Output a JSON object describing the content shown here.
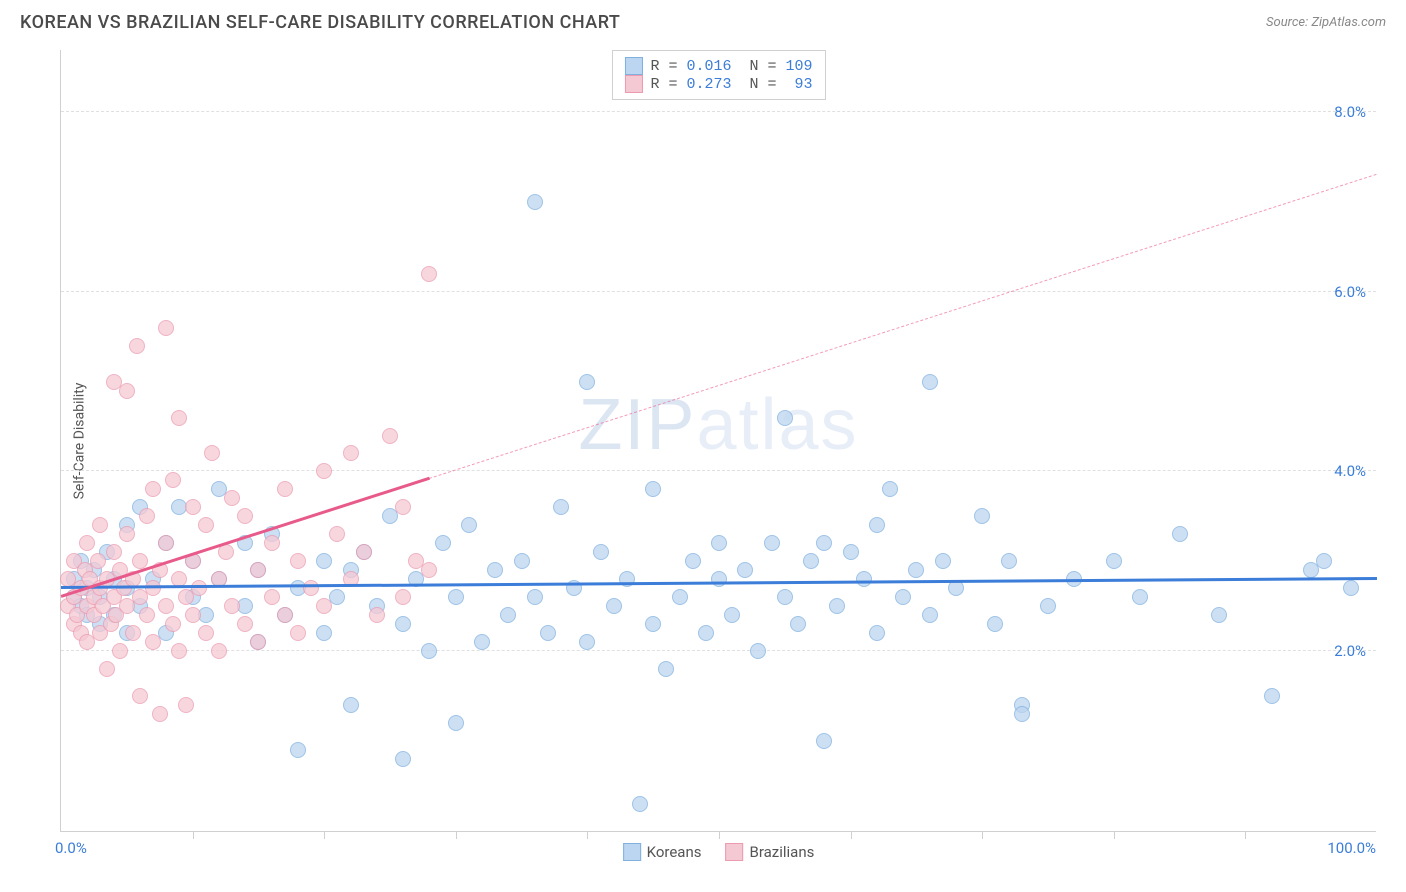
{
  "title": "KOREAN VS BRAZILIAN SELF-CARE DISABILITY CORRELATION CHART",
  "source_label": "Source: ",
  "source_name": "ZipAtlas.com",
  "watermark": "ZIPatlas",
  "y_axis_label": "Self-Care Disability",
  "chart": {
    "type": "scatter",
    "xlim": [
      0,
      100
    ],
    "ylim": [
      0,
      8.7
    ],
    "x_ticks_pct": [
      10,
      20,
      30,
      40,
      50,
      60,
      70,
      80,
      90
    ],
    "x_tick_labels": [
      {
        "pos": 0,
        "label": "0.0%"
      },
      {
        "pos": 100,
        "label": "100.0%"
      }
    ],
    "y_gridlines": [
      2,
      4,
      6,
      8
    ],
    "y_tick_labels": [
      {
        "pos": 2,
        "label": "2.0%"
      },
      {
        "pos": 4,
        "label": "4.0%"
      },
      {
        "pos": 6,
        "label": "6.0%"
      },
      {
        "pos": 8,
        "label": "8.0%"
      }
    ],
    "background_color": "#ffffff",
    "grid_color": "#e0e0e0",
    "marker_radius": 8,
    "series": [
      {
        "name": "Koreans",
        "color_fill": "#bcd5f0",
        "color_stroke": "#7fb0e0",
        "R": "0.016",
        "N": "109",
        "trend": {
          "y_intercept": 2.7,
          "y_at_100": 2.8,
          "solid_until_x": 100,
          "color": "#3b7dd8"
        },
        "points": [
          [
            1,
            2.6
          ],
          [
            1,
            2.8
          ],
          [
            1.5,
            2.5
          ],
          [
            1.5,
            3.0
          ],
          [
            2,
            2.4
          ],
          [
            2,
            2.7
          ],
          [
            2.5,
            2.9
          ],
          [
            3,
            2.3
          ],
          [
            3,
            2.6
          ],
          [
            3.5,
            3.1
          ],
          [
            4,
            2.8
          ],
          [
            4,
            2.4
          ],
          [
            5,
            3.4
          ],
          [
            5,
            2.2
          ],
          [
            5,
            2.7
          ],
          [
            6,
            3.6
          ],
          [
            6,
            2.5
          ],
          [
            7,
            2.8
          ],
          [
            8,
            2.2
          ],
          [
            8,
            3.2
          ],
          [
            9,
            3.6
          ],
          [
            10,
            2.6
          ],
          [
            10,
            3.0
          ],
          [
            11,
            2.4
          ],
          [
            12,
            3.8
          ],
          [
            12,
            2.8
          ],
          [
            14,
            3.2
          ],
          [
            14,
            2.5
          ],
          [
            15,
            2.9
          ],
          [
            15,
            2.1
          ],
          [
            16,
            3.3
          ],
          [
            17,
            2.4
          ],
          [
            18,
            2.7
          ],
          [
            18,
            0.9
          ],
          [
            20,
            3.0
          ],
          [
            20,
            2.2
          ],
          [
            21,
            2.6
          ],
          [
            22,
            2.9
          ],
          [
            22,
            1.4
          ],
          [
            23,
            3.1
          ],
          [
            24,
            2.5
          ],
          [
            25,
            3.5
          ],
          [
            26,
            2.3
          ],
          [
            26,
            0.8
          ],
          [
            27,
            2.8
          ],
          [
            28,
            2.0
          ],
          [
            29,
            3.2
          ],
          [
            30,
            2.6
          ],
          [
            30,
            1.2
          ],
          [
            31,
            3.4
          ],
          [
            32,
            2.1
          ],
          [
            33,
            2.9
          ],
          [
            34,
            2.4
          ],
          [
            35,
            3.0
          ],
          [
            36,
            7.0
          ],
          [
            36,
            2.6
          ],
          [
            37,
            2.2
          ],
          [
            38,
            3.6
          ],
          [
            39,
            2.7
          ],
          [
            40,
            2.1
          ],
          [
            40,
            5.0
          ],
          [
            41,
            3.1
          ],
          [
            42,
            2.5
          ],
          [
            43,
            2.8
          ],
          [
            44,
            0.3
          ],
          [
            45,
            2.3
          ],
          [
            45,
            3.8
          ],
          [
            46,
            1.8
          ],
          [
            47,
            2.6
          ],
          [
            48,
            3.0
          ],
          [
            49,
            2.2
          ],
          [
            50,
            3.2
          ],
          [
            50,
            2.8
          ],
          [
            51,
            2.4
          ],
          [
            52,
            2.9
          ],
          [
            53,
            2.0
          ],
          [
            54,
            3.2
          ],
          [
            55,
            2.6
          ],
          [
            55,
            4.6
          ],
          [
            56,
            2.3
          ],
          [
            57,
            3.0
          ],
          [
            58,
            1.0
          ],
          [
            58,
            3.2
          ],
          [
            59,
            2.5
          ],
          [
            60,
            3.1
          ],
          [
            61,
            2.8
          ],
          [
            62,
            2.2
          ],
          [
            62,
            3.4
          ],
          [
            63,
            3.8
          ],
          [
            64,
            2.6
          ],
          [
            65,
            2.9
          ],
          [
            66,
            2.4
          ],
          [
            66,
            5.0
          ],
          [
            67,
            3.0
          ],
          [
            68,
            2.7
          ],
          [
            70,
            3.5
          ],
          [
            71,
            2.3
          ],
          [
            72,
            3.0
          ],
          [
            73,
            1.4
          ],
          [
            73,
            1.3
          ],
          [
            75,
            2.5
          ],
          [
            77,
            2.8
          ],
          [
            80,
            3.0
          ],
          [
            82,
            2.6
          ],
          [
            85,
            3.3
          ],
          [
            88,
            2.4
          ],
          [
            92,
            1.5
          ],
          [
            95,
            2.9
          ],
          [
            96,
            3.0
          ],
          [
            98,
            2.7
          ]
        ]
      },
      {
        "name": "Brazilians",
        "color_fill": "#f5c9d3",
        "color_stroke": "#eb9ab0",
        "R": "0.273",
        "N": "93",
        "trend": {
          "y_intercept": 2.6,
          "y_at_100": 7.3,
          "solid_until_x": 28,
          "color": "#e85a8a"
        },
        "points": [
          [
            0.5,
            2.5
          ],
          [
            0.5,
            2.8
          ],
          [
            1,
            2.3
          ],
          [
            1,
            2.6
          ],
          [
            1,
            3.0
          ],
          [
            1.2,
            2.4
          ],
          [
            1.5,
            2.7
          ],
          [
            1.5,
            2.2
          ],
          [
            1.8,
            2.9
          ],
          [
            2,
            2.5
          ],
          [
            2,
            2.1
          ],
          [
            2,
            3.2
          ],
          [
            2.2,
            2.8
          ],
          [
            2.5,
            2.4
          ],
          [
            2.5,
            2.6
          ],
          [
            2.8,
            3.0
          ],
          [
            3,
            2.2
          ],
          [
            3,
            2.7
          ],
          [
            3,
            3.4
          ],
          [
            3.2,
            2.5
          ],
          [
            3.5,
            2.8
          ],
          [
            3.5,
            1.8
          ],
          [
            3.8,
            2.3
          ],
          [
            4,
            2.6
          ],
          [
            4,
            3.1
          ],
          [
            4,
            5.0
          ],
          [
            4.2,
            2.4
          ],
          [
            4.5,
            2.9
          ],
          [
            4.5,
            2.0
          ],
          [
            4.8,
            2.7
          ],
          [
            5,
            2.5
          ],
          [
            5,
            3.3
          ],
          [
            5,
            4.9
          ],
          [
            5.5,
            2.2
          ],
          [
            5.5,
            2.8
          ],
          [
            5.8,
            5.4
          ],
          [
            6,
            2.6
          ],
          [
            6,
            3.0
          ],
          [
            6,
            1.5
          ],
          [
            6.5,
            2.4
          ],
          [
            6.5,
            3.5
          ],
          [
            7,
            2.7
          ],
          [
            7,
            2.1
          ],
          [
            7,
            3.8
          ],
          [
            7.5,
            2.9
          ],
          [
            7.5,
            1.3
          ],
          [
            8,
            2.5
          ],
          [
            8,
            3.2
          ],
          [
            8,
            5.6
          ],
          [
            8.5,
            2.3
          ],
          [
            8.5,
            3.9
          ],
          [
            9,
            2.8
          ],
          [
            9,
            2.0
          ],
          [
            9,
            4.6
          ],
          [
            9.5,
            2.6
          ],
          [
            9.5,
            1.4
          ],
          [
            10,
            3.0
          ],
          [
            10,
            2.4
          ],
          [
            10,
            3.6
          ],
          [
            10.5,
            2.7
          ],
          [
            11,
            2.2
          ],
          [
            11,
            3.4
          ],
          [
            11.5,
            4.2
          ],
          [
            12,
            2.8
          ],
          [
            12,
            2.0
          ],
          [
            12.5,
            3.1
          ],
          [
            13,
            2.5
          ],
          [
            13,
            3.7
          ],
          [
            14,
            2.3
          ],
          [
            14,
            3.5
          ],
          [
            15,
            2.9
          ],
          [
            15,
            2.1
          ],
          [
            16,
            3.2
          ],
          [
            16,
            2.6
          ],
          [
            17,
            3.8
          ],
          [
            17,
            2.4
          ],
          [
            18,
            3.0
          ],
          [
            18,
            2.2
          ],
          [
            19,
            2.7
          ],
          [
            20,
            4.0
          ],
          [
            20,
            2.5
          ],
          [
            21,
            3.3
          ],
          [
            22,
            4.2
          ],
          [
            22,
            2.8
          ],
          [
            23,
            3.1
          ],
          [
            24,
            2.4
          ],
          [
            25,
            4.4
          ],
          [
            26,
            3.6
          ],
          [
            26,
            2.6
          ],
          [
            27,
            3.0
          ],
          [
            28,
            6.2
          ],
          [
            28,
            2.9
          ]
        ]
      }
    ]
  },
  "legend_top": {
    "R_label": "R =",
    "N_label": "N ="
  },
  "legend_bottom": {
    "items": [
      "Koreans",
      "Brazilians"
    ]
  }
}
